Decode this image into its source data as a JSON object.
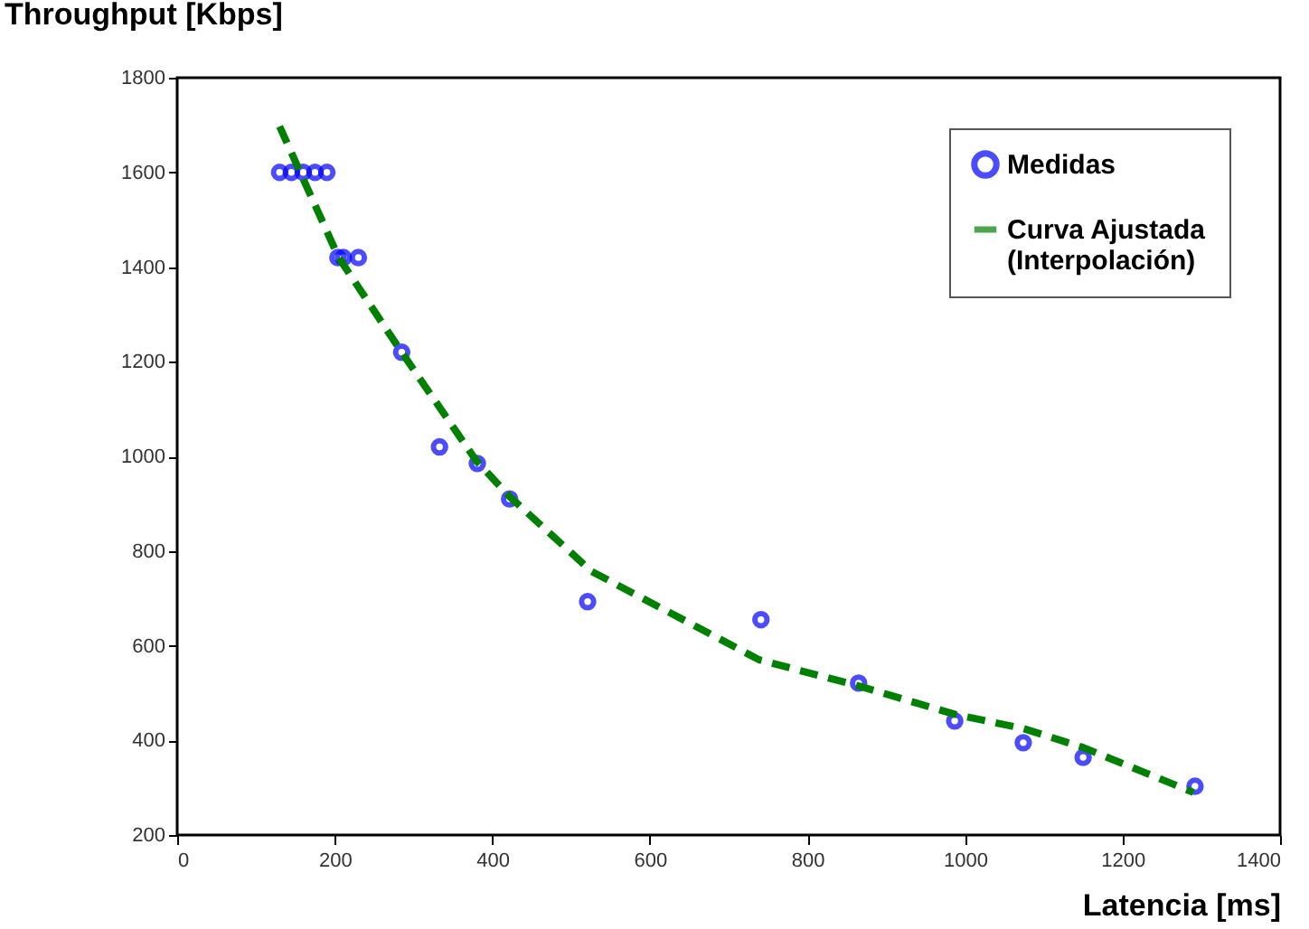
{
  "chart_data": {
    "type": "scatter",
    "xlabel": "Latencia [ms]",
    "ylabel": "Throughput [Kbps]",
    "xlim": [
      0,
      1400
    ],
    "xticks": [
      0,
      200,
      400,
      600,
      800,
      1000,
      1200,
      1400
    ],
    "ylim": [
      200,
      1800
    ],
    "yticks": [
      200,
      400,
      600,
      800,
      1000,
      1200,
      1400,
      1600,
      1800
    ],
    "grid": false,
    "legend": "top right",
    "series": [
      {
        "name": "Medidas",
        "color": "#0000ff",
        "marker": "circle",
        "x": [
          130,
          145,
          160,
          175,
          190,
          204,
          211,
          230,
          285,
          333,
          381,
          422,
          521,
          741,
          865,
          987,
          1074,
          1150,
          1292
        ],
        "values": [
          1600,
          1600,
          1600,
          1600,
          1600,
          1420,
          1420,
          1420,
          1220,
          1020,
          985,
          910,
          693,
          655,
          521,
          441,
          395,
          364,
          303
        ]
      },
      {
        "name": "Curva Ajustada (Interpolación)",
        "type": "line",
        "color": "#008000",
        "line_style": "dashed",
        "x": [
          130,
          205,
          285,
          380,
          422,
          526,
          739,
          865,
          987,
          1074,
          1150,
          1290
        ],
        "values": [
          1697,
          1420,
          1220,
          990,
          915,
          757,
          570,
          515,
          455,
          425,
          385,
          290
        ]
      }
    ]
  }
}
